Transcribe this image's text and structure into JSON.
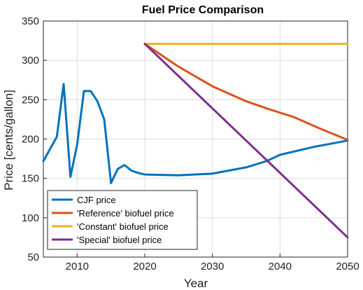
{
  "chart_data": {
    "type": "line",
    "title": "Fuel Price Comparison",
    "xlabel": "Year",
    "ylabel": "Price [cents/gallon]",
    "xlim": [
      2005,
      2050
    ],
    "ylim": [
      50,
      350
    ],
    "xticks": [
      2010,
      2020,
      2030,
      2040,
      2050
    ],
    "yticks": [
      50,
      100,
      150,
      200,
      250,
      300,
      350
    ],
    "grid": true,
    "legend_position": "bottom-left",
    "series": [
      {
        "name": "CJF price",
        "color": "#0072BD",
        "x": [
          2005,
          2007,
          2008,
          2009,
          2010,
          2011,
          2012,
          2013,
          2014,
          2015,
          2016,
          2017,
          2018,
          2019,
          2020,
          2025,
          2030,
          2035,
          2038,
          2040,
          2045,
          2050
        ],
        "y": [
          172,
          203,
          270,
          152,
          193,
          261,
          261,
          248,
          225,
          144,
          162,
          167,
          160,
          157,
          155,
          154,
          156,
          164,
          172,
          180,
          190,
          198
        ]
      },
      {
        "name": "'Reference' biofuel price",
        "color": "#D95319",
        "x": [
          2020,
          2025,
          2030,
          2035,
          2038,
          2042,
          2046,
          2050
        ],
        "y": [
          321,
          292,
          267,
          248,
          239,
          228,
          213,
          199
        ]
      },
      {
        "name": "'Constant' biofuel price",
        "color": "#EDB120",
        "x": [
          2020,
          2050
        ],
        "y": [
          321,
          321
        ]
      },
      {
        "name": "'Special' biofuel price",
        "color": "#7E2F8E",
        "x": [
          2020,
          2050
        ],
        "y": [
          321,
          75
        ]
      }
    ]
  }
}
